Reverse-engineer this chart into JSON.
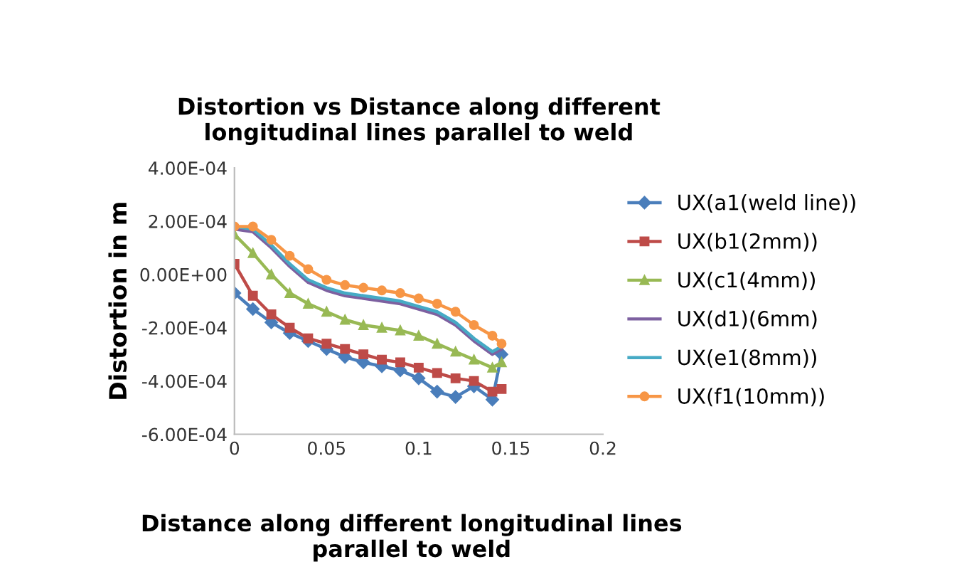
{
  "chart_data": {
    "type": "line",
    "title": "Distortion vs Distance along different\nlongitudinal lines parallel to weld",
    "xlabel": "Distance along different longitudinal lines\nparallel to weld",
    "ylabel": "Distortion in m",
    "x": [
      0,
      0.01,
      0.02,
      0.03,
      0.04,
      0.05,
      0.06,
      0.07,
      0.08,
      0.09,
      0.1,
      0.11,
      0.12,
      0.13,
      0.14,
      0.145
    ],
    "series": [
      {
        "name": "UX(a1(weld line))",
        "color": "#4a7ebb",
        "marker": "diamond",
        "values": [
          -7e-05,
          -0.00013,
          -0.00018,
          -0.00022,
          -0.00025,
          -0.00028,
          -0.00031,
          -0.00033,
          -0.000345,
          -0.00036,
          -0.00039,
          -0.00044,
          -0.00046,
          -0.00042,
          -0.00047,
          -0.0003
        ]
      },
      {
        "name": "UX(b1(2mm))",
        "color": "#be4b48",
        "marker": "square",
        "values": [
          4e-05,
          -8e-05,
          -0.00015,
          -0.0002,
          -0.00024,
          -0.00026,
          -0.00028,
          -0.0003,
          -0.00032,
          -0.00033,
          -0.00035,
          -0.00037,
          -0.00039,
          -0.0004,
          -0.00044,
          -0.00043
        ]
      },
      {
        "name": "UX(c1(4mm))",
        "color": "#98b954",
        "marker": "triangle",
        "values": [
          0.00015,
          8e-05,
          0.0,
          -7e-05,
          -0.00011,
          -0.00014,
          -0.00017,
          -0.00019,
          -0.0002,
          -0.00021,
          -0.00023,
          -0.00026,
          -0.00029,
          -0.00032,
          -0.00035,
          -0.00033
        ]
      },
      {
        "name": "UX(d1)(6mm)",
        "color": "#7d60a0",
        "marker": "none",
        "values": [
          0.00017,
          0.00016,
          0.0001,
          3e-05,
          -3e-05,
          -6e-05,
          -8e-05,
          -9e-05,
          -0.0001,
          -0.00011,
          -0.00013,
          -0.00015,
          -0.00019,
          -0.00025,
          -0.0003,
          -0.00028
        ]
      },
      {
        "name": "UX(e1(8mm))",
        "color": "#46aac5",
        "marker": "none",
        "values": [
          0.00018,
          0.00017,
          0.00011,
          4e-05,
          -2e-05,
          -5e-05,
          -7e-05,
          -8e-05,
          -9e-05,
          -0.0001,
          -0.00012,
          -0.00014,
          -0.00018,
          -0.00024,
          -0.00029,
          -0.00027
        ]
      },
      {
        "name": "UX(f1(10mm))",
        "color": "#f79646",
        "marker": "circle",
        "values": [
          0.00018,
          0.00018,
          0.00013,
          7e-05,
          2e-05,
          -2e-05,
          -4e-05,
          -5e-05,
          -6e-05,
          -7e-05,
          -9e-05,
          -0.00011,
          -0.00014,
          -0.00019,
          -0.00023,
          -0.00026
        ]
      }
    ],
    "xlim": [
      0,
      0.2
    ],
    "xticks": [
      0,
      0.05,
      0.1,
      0.15,
      0.2
    ],
    "ylim": [
      -0.0006,
      0.0004
    ],
    "yticks": [
      {
        "value": -0.0006,
        "label": "-6.00E-04"
      },
      {
        "value": -0.0004,
        "label": "-4.00E-04"
      },
      {
        "value": -0.0002,
        "label": "-2.00E-04"
      },
      {
        "value": 0,
        "label": "0.00E+00"
      },
      {
        "value": 0.0002,
        "label": "2.00E-04"
      },
      {
        "value": 0.0004,
        "label": "4.00E-04"
      }
    ],
    "grid": false,
    "legend": "right",
    "line_style": "solid"
  }
}
